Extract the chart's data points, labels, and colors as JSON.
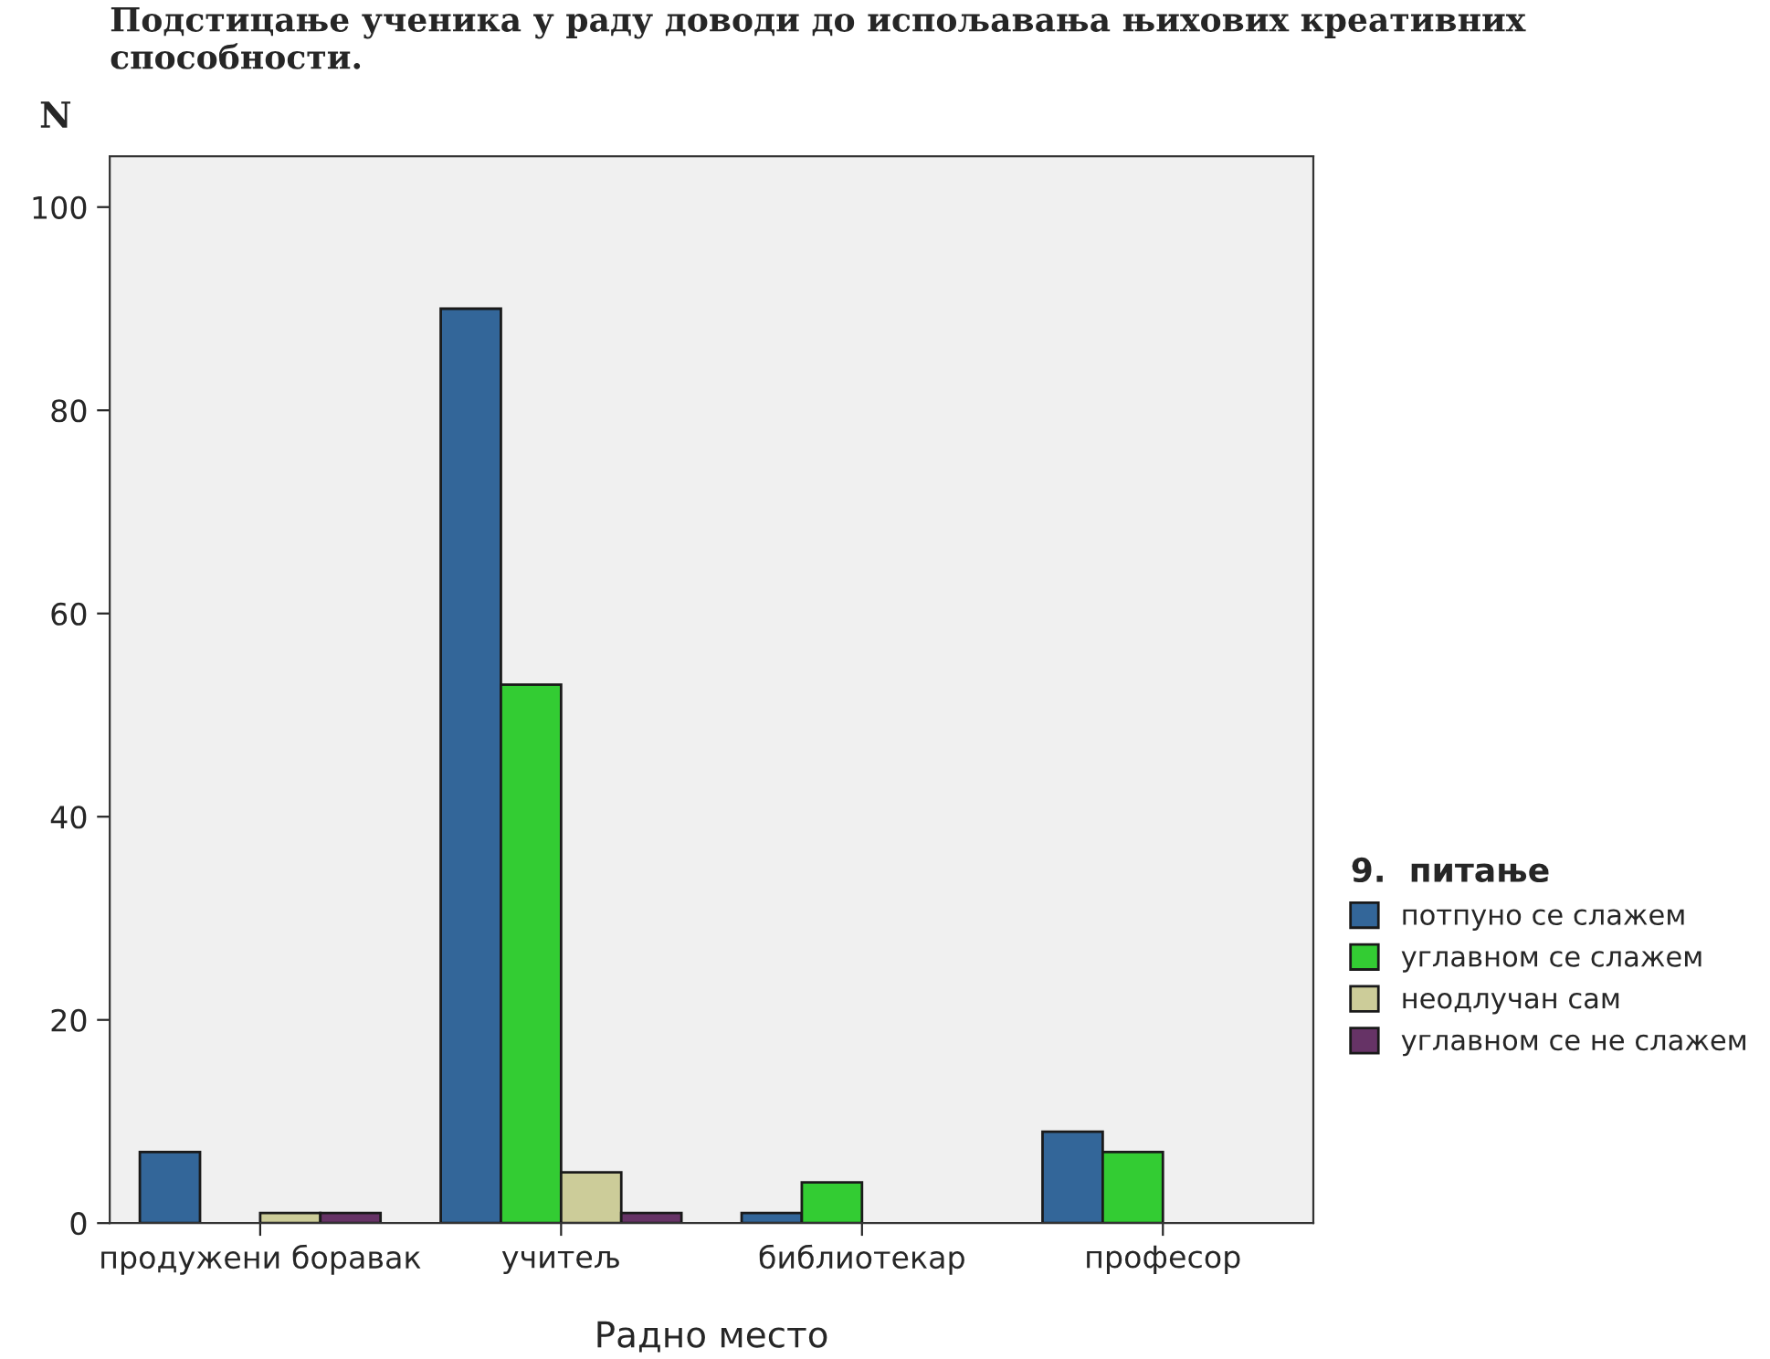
{
  "chart_data": {
    "type": "bar",
    "title": "Подстицање ученика у раду доводи до испољавања њихових креативних способности.",
    "xlabel": "Радно место",
    "ylabel": "N",
    "legend_title": "9.  питање",
    "categories": [
      "продужени боравак",
      "учитељ",
      "библиотекар",
      "професор"
    ],
    "series": [
      {
        "name": "потпуно се слажем",
        "color": "#336699",
        "values": [
          7,
          90,
          1,
          9
        ]
      },
      {
        "name": "углавном се слажем",
        "color": "#33cc33",
        "values": [
          null,
          53,
          4,
          7
        ]
      },
      {
        "name": "неодлучан сам",
        "color": "#cccc99",
        "values": [
          1,
          5,
          null,
          null
        ]
      },
      {
        "name": "углавном се не слажем",
        "color": "#663366",
        "values": [
          1,
          1,
          null,
          null
        ]
      }
    ],
    "ylim": [
      0,
      105
    ],
    "yticks": [
      0,
      20,
      40,
      60,
      80,
      100
    ],
    "grid": false,
    "legend": "right"
  }
}
